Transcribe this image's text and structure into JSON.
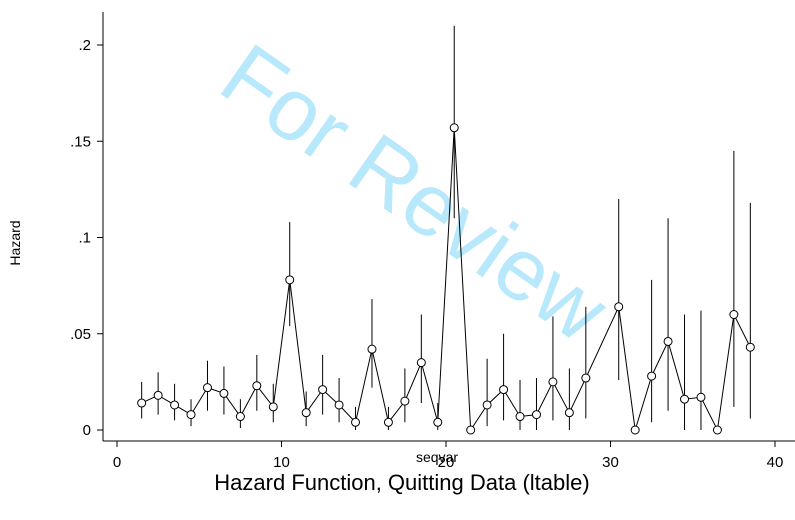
{
  "chart_data": {
    "type": "line",
    "title": "Hazard Function, Quitting Data (ltable)",
    "xlabel": "seqvar",
    "ylabel": "Hazard",
    "xlim": [
      0,
      40
    ],
    "ylim": [
      0,
      0.2
    ],
    "x_ticks": [
      0,
      10,
      20,
      30,
      40
    ],
    "x_tick_labels": [
      "0",
      "10",
      "20",
      "30",
      "40"
    ],
    "y_ticks": [
      0,
      0.05,
      0.1,
      0.15,
      0.2
    ],
    "y_tick_labels": [
      "0",
      ".05",
      ".1",
      ".15",
      ".2"
    ],
    "grid": false,
    "legend": "none",
    "watermark": "For Review",
    "series": [
      {
        "marker": "hollow-circle",
        "color": "#000000",
        "points": [
          {
            "x": 1.5,
            "y": 0.014,
            "lo": 0.006,
            "hi": 0.025
          },
          {
            "x": 2.5,
            "y": 0.018,
            "lo": 0.008,
            "hi": 0.03
          },
          {
            "x": 3.5,
            "y": 0.013,
            "lo": 0.005,
            "hi": 0.024
          },
          {
            "x": 4.5,
            "y": 0.008,
            "lo": 0.002,
            "hi": 0.016
          },
          {
            "x": 5.5,
            "y": 0.022,
            "lo": 0.01,
            "hi": 0.036
          },
          {
            "x": 6.5,
            "y": 0.019,
            "lo": 0.008,
            "hi": 0.033
          },
          {
            "x": 7.5,
            "y": 0.007,
            "lo": 0.001,
            "hi": 0.016
          },
          {
            "x": 8.5,
            "y": 0.023,
            "lo": 0.01,
            "hi": 0.039
          },
          {
            "x": 9.5,
            "y": 0.012,
            "lo": 0.004,
            "hi": 0.024
          },
          {
            "x": 10.5,
            "y": 0.078,
            "lo": 0.054,
            "hi": 0.108
          },
          {
            "x": 11.5,
            "y": 0.009,
            "lo": 0.002,
            "hi": 0.02
          },
          {
            "x": 12.5,
            "y": 0.021,
            "lo": 0.008,
            "hi": 0.039
          },
          {
            "x": 13.5,
            "y": 0.013,
            "lo": 0.004,
            "hi": 0.027
          },
          {
            "x": 14.5,
            "y": 0.004,
            "lo": 0.0,
            "hi": 0.012
          },
          {
            "x": 15.5,
            "y": 0.042,
            "lo": 0.022,
            "hi": 0.068
          },
          {
            "x": 16.5,
            "y": 0.004,
            "lo": 0.0,
            "hi": 0.012
          },
          {
            "x": 17.5,
            "y": 0.015,
            "lo": 0.004,
            "hi": 0.032
          },
          {
            "x": 18.5,
            "y": 0.035,
            "lo": 0.014,
            "hi": 0.06
          },
          {
            "x": 19.5,
            "y": 0.004,
            "lo": 0.0,
            "hi": 0.014
          },
          {
            "x": 20.5,
            "y": 0.157,
            "lo": 0.11,
            "hi": 0.21
          },
          {
            "x": 21.5,
            "y": 0.0,
            "lo": 0.0,
            "hi": 0.0
          },
          {
            "x": 22.5,
            "y": 0.013,
            "lo": 0.002,
            "hi": 0.037
          },
          {
            "x": 23.5,
            "y": 0.021,
            "lo": 0.005,
            "hi": 0.05
          },
          {
            "x": 24.5,
            "y": 0.007,
            "lo": 0.0,
            "hi": 0.026
          },
          {
            "x": 25.5,
            "y": 0.008,
            "lo": 0.0,
            "hi": 0.027
          },
          {
            "x": 26.5,
            "y": 0.025,
            "lo": 0.005,
            "hi": 0.059
          },
          {
            "x": 27.5,
            "y": 0.009,
            "lo": 0.0,
            "hi": 0.032
          },
          {
            "x": 28.5,
            "y": 0.027,
            "lo": 0.006,
            "hi": 0.064
          },
          {
            "x": 30.5,
            "y": 0.064,
            "lo": 0.026,
            "hi": 0.12
          },
          {
            "x": 31.5,
            "y": 0.0,
            "lo": 0.0,
            "hi": 0.0
          },
          {
            "x": 32.5,
            "y": 0.028,
            "lo": 0.004,
            "hi": 0.078
          },
          {
            "x": 33.5,
            "y": 0.046,
            "lo": 0.01,
            "hi": 0.11
          },
          {
            "x": 34.5,
            "y": 0.016,
            "lo": 0.0,
            "hi": 0.06
          },
          {
            "x": 35.5,
            "y": 0.017,
            "lo": 0.0,
            "hi": 0.062
          },
          {
            "x": 36.5,
            "y": 0.0,
            "lo": 0.0,
            "hi": 0.0
          },
          {
            "x": 37.5,
            "y": 0.06,
            "lo": 0.012,
            "hi": 0.145
          },
          {
            "x": 38.5,
            "y": 0.043,
            "lo": 0.006,
            "hi": 0.118
          }
        ]
      }
    ]
  }
}
